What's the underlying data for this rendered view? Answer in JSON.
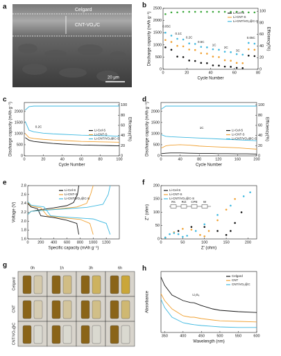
{
  "sem_image": {
    "panel": "a",
    "labels": [
      "Celgard",
      "CNT-VO₂/C"
    ],
    "scale_bar": "20 μm"
  },
  "photo_grid": {
    "panel": "g",
    "columns": [
      "0h",
      "1h",
      "3h",
      "6h"
    ],
    "rows": [
      "Celgard",
      "CNT",
      "CNT/VO₂@C"
    ]
  },
  "chart_data": [
    {
      "type": "scatter",
      "panel": "b",
      "xlabel": "Cycle Number",
      "ylabel": "Discharge capacity (mAh g⁻¹)",
      "y2label": "Efficiency(%)",
      "x": [
        2,
        7,
        12,
        17,
        22,
        27,
        32,
        37,
        42,
        47,
        52,
        57,
        62,
        67,
        72,
        77
      ],
      "xlim": [
        0,
        80
      ],
      "xticks": [
        0,
        20,
        40,
        60,
        80
      ],
      "ylim": [
        0,
        2500
      ],
      "yticks": [
        0,
        500,
        1000,
        1500,
        2000,
        2500
      ],
      "y2lim": [
        0,
        105
      ],
      "y2ticks": [
        0,
        20,
        40,
        60,
        80,
        100
      ],
      "legend": "upper right",
      "annotations": [
        "0.05C",
        "0.1C",
        "0.2C",
        "0.5C",
        "1C",
        "2C",
        "3C",
        "0.05C"
      ],
      "series": [
        {
          "name": "Li-Cel-S",
          "color": "#111111",
          "values": [
            900,
            800,
            520,
            500,
            360,
            340,
            260,
            250,
            160,
            150,
            110,
            100,
            60,
            50,
            560,
            540
          ]
        },
        {
          "name": "Li-CNT-S",
          "color": "#f0a030",
          "values": [
            1200,
            1120,
            960,
            940,
            810,
            790,
            660,
            640,
            520,
            500,
            370,
            350,
            260,
            250,
            820,
            800
          ]
        },
        {
          "name": "Li-CNT/VO₂@C-S",
          "color": "#3cb8e0",
          "values": [
            1500,
            1380,
            1250,
            1220,
            1060,
            1040,
            920,
            900,
            820,
            800,
            720,
            700,
            620,
            600,
            1080,
            1050
          ]
        },
        {
          "color": "#3aa63a",
          "axis": "y2",
          "values": [
            95,
            98,
            98,
            99,
            99,
            99,
            99,
            99,
            99,
            99,
            99,
            99,
            99,
            99,
            98,
            98
          ]
        }
      ]
    },
    {
      "type": "line",
      "panel": "c",
      "xlabel": "Cycle Number",
      "ylabel": "Discharge capacity (mAh g⁻¹)",
      "y2label": "Efficiency(%)",
      "x": [
        1,
        5,
        10,
        20,
        30,
        40,
        50,
        60,
        70,
        80,
        90,
        100
      ],
      "xlim": [
        0,
        100
      ],
      "xticks": [
        0,
        20,
        40,
        60,
        80,
        100
      ],
      "ylim": [
        0,
        2400
      ],
      "yticks": [
        0,
        500,
        1000,
        1500,
        2000
      ],
      "y2lim": [
        0,
        105
      ],
      "y2ticks": [
        0,
        20,
        40,
        60,
        80,
        100
      ],
      "legend": "center right",
      "annotations": [
        "0.2C"
      ],
      "series": [
        {
          "name": "Li-Cel-S",
          "color": "#111111",
          "values": [
            820,
            700,
            650,
            600,
            560,
            530,
            510,
            490,
            480,
            470,
            460,
            450
          ]
        },
        {
          "name": "Li-CNT-S",
          "color": "#f0a030",
          "values": [
            1000,
            820,
            780,
            740,
            710,
            690,
            670,
            650,
            640,
            630,
            620,
            610
          ]
        },
        {
          "name": "Li-CNT/VO₂@C-S",
          "color": "#3cb8e0",
          "values": [
            1550,
            1150,
            1080,
            1020,
            990,
            970,
            950,
            930,
            920,
            910,
            900,
            880
          ]
        },
        {
          "color": "#3cb8e0",
          "axis": "y2",
          "values": [
            90,
            97,
            98,
            98,
            98,
            98,
            98,
            98,
            98,
            98,
            98,
            98
          ]
        }
      ]
    },
    {
      "type": "line",
      "panel": "d",
      "xlabel": "Cycle Number",
      "ylabel": "Discharge capacity (mAh g⁻¹)",
      "y2label": "Efficiency(%)",
      "x": [
        1,
        10,
        20,
        40,
        60,
        80,
        100,
        120,
        140,
        160,
        180,
        200
      ],
      "xlim": [
        0,
        200
      ],
      "xticks": [
        0,
        40,
        80,
        120,
        160,
        200
      ],
      "ylim": [
        0,
        2400
      ],
      "yticks": [
        0,
        500,
        1000,
        1500,
        2000
      ],
      "y2lim": [
        0,
        105
      ],
      "y2ticks": [
        0,
        20,
        40,
        60,
        80,
        100
      ],
      "legend": "center right",
      "annotations": [
        "1C"
      ],
      "series": [
        {
          "name": "Li-Cel-S",
          "color": "#111111",
          "values": [
            100,
            120,
            130,
            130,
            120,
            110,
            110,
            100,
            100,
            90,
            90,
            80
          ]
        },
        {
          "name": "Li-CNT-S",
          "color": "#f0a030",
          "values": [
            350,
            450,
            480,
            500,
            480,
            440,
            420,
            400,
            380,
            360,
            330,
            300
          ]
        },
        {
          "name": "Li-CNT/VO₂@C-S",
          "color": "#3cb8e0",
          "values": [
            950,
            880,
            860,
            840,
            820,
            800,
            780,
            760,
            740,
            720,
            700,
            680
          ]
        },
        {
          "color": "#3cb8e0",
          "axis": "y2",
          "values": [
            92,
            98,
            98,
            98,
            98,
            98,
            98,
            98,
            98,
            98,
            98,
            98
          ]
        }
      ]
    },
    {
      "type": "line",
      "panel": "e",
      "xlabel": "Specific capacity (mAh g⁻¹)",
      "ylabel": "Voltage (V)",
      "xlim": [
        0,
        1400
      ],
      "xticks": [
        0,
        200,
        400,
        600,
        800,
        1000,
        1200
      ],
      "ylim": [
        1.6,
        2.8
      ],
      "yticks": [
        1.6,
        1.8,
        {
          "value": 2,
          "label": "2.0"
        },
        2.2,
        2.4,
        2.6,
        2.8
      ],
      "legend": "upper center",
      "series": [
        {
          "name": "Li-Cel-S",
          "color": "#111111",
          "x": [
            0,
            50,
            150,
            200,
            400,
            600,
            750,
            780
          ],
          "values": [
            2.4,
            2.32,
            2.28,
            2.12,
            2.08,
            2.02,
            1.95,
            1.7
          ]
        },
        {
          "color": "#111111",
          "x": [
            0,
            50,
            200,
            400,
            600,
            700,
            760,
            780
          ],
          "values": [
            2.15,
            2.22,
            2.26,
            2.3,
            2.35,
            2.42,
            2.6,
            2.8
          ]
        },
        {
          "name": "Li-CNT-S",
          "color": "#f0a030",
          "x": [
            0,
            50,
            200,
            300,
            500,
            800,
            950,
            1000
          ],
          "values": [
            2.42,
            2.34,
            2.3,
            2.12,
            2.08,
            2.04,
            1.95,
            1.7
          ]
        },
        {
          "color": "#f0a030",
          "x": [
            0,
            50,
            250,
            500,
            750,
            900,
            960,
            1000
          ],
          "values": [
            2.15,
            2.22,
            2.25,
            2.28,
            2.32,
            2.4,
            2.6,
            2.8
          ]
        },
        {
          "name": "Li-CNT/VO₂@C-S",
          "color": "#3cb8e0",
          "x": [
            0,
            50,
            250,
            350,
            600,
            1000,
            1200,
            1260
          ],
          "values": [
            2.44,
            2.36,
            2.32,
            2.12,
            2.09,
            2.05,
            1.95,
            1.7
          ]
        },
        {
          "color": "#3cb8e0",
          "x": [
            0,
            50,
            300,
            600,
            900,
            1150,
            1230,
            1260
          ],
          "values": [
            2.15,
            2.22,
            2.25,
            2.28,
            2.31,
            2.38,
            2.6,
            2.8
          ]
        }
      ]
    },
    {
      "type": "scatter",
      "panel": "f",
      "xlabel": "Z' (ohm)",
      "ylabel": "Z'' (ohm)",
      "xlim": [
        0,
        220
      ],
      "xticks": [
        0,
        50,
        100,
        150,
        200
      ],
      "ylim": [
        0,
        200
      ],
      "yticks": [
        0,
        50,
        100,
        150,
        200
      ],
      "legend": "upper left",
      "circuit": [
        "Rs",
        "Rct",
        "CPE",
        "W"
      ],
      "series": [
        {
          "name": "Li-Cel-S",
          "color": "#111111",
          "x": [
            10,
            40,
            70,
            100,
            130,
            150,
            160,
            170,
            185
          ],
          "values": [
            5,
            30,
            45,
            45,
            30,
            15,
            30,
            60,
            100
          ]
        },
        {
          "name": "Li-CNT-S",
          "color": "#f0a030",
          "x": [
            10,
            30,
            50,
            70,
            90,
            100,
            110,
            130,
            150,
            170
          ],
          "values": [
            5,
            25,
            38,
            35,
            15,
            10,
            30,
            70,
            110,
            150
          ]
        },
        {
          "name": "Li-CNT/VO₂@C-S",
          "color": "#3cb8e0",
          "x": [
            10,
            20,
            30,
            40,
            50,
            60,
            80,
            100,
            130,
            160,
            190,
            205
          ],
          "values": [
            5,
            18,
            22,
            18,
            8,
            12,
            30,
            55,
            90,
            125,
            160,
            175
          ]
        }
      ]
    },
    {
      "type": "line",
      "panel": "h",
      "xlabel": "Wavelength (nm)",
      "ylabel": "Absorbance",
      "x": [
        340,
        350,
        370,
        400,
        420,
        430,
        450,
        480,
        500,
        550,
        600
      ],
      "xlim": [
        340,
        600
      ],
      "xticks": [
        350,
        400,
        450,
        500,
        550,
        600
      ],
      "ylim": [
        0,
        2.2
      ],
      "legend": "upper right",
      "annotations": [
        "Li₂S₆"
      ],
      "series": [
        {
          "name": "Celgard",
          "color": "#111111",
          "values": [
            2.0,
            1.7,
            1.35,
            1.15,
            1.08,
            1.07,
            0.97,
            0.85,
            0.8,
            0.75,
            0.72
          ]
        },
        {
          "name": "CNT",
          "color": "#f0a030",
          "values": [
            1.4,
            1.15,
            0.85,
            0.6,
            0.55,
            0.55,
            0.5,
            0.45,
            0.42,
            0.4,
            0.38
          ]
        },
        {
          "name": "CNT/VO₂@C",
          "color": "#3cb8e0",
          "values": [
            1.2,
            0.9,
            0.55,
            0.35,
            0.3,
            0.28,
            0.25,
            0.22,
            0.2,
            0.18,
            0.18
          ]
        }
      ]
    }
  ]
}
